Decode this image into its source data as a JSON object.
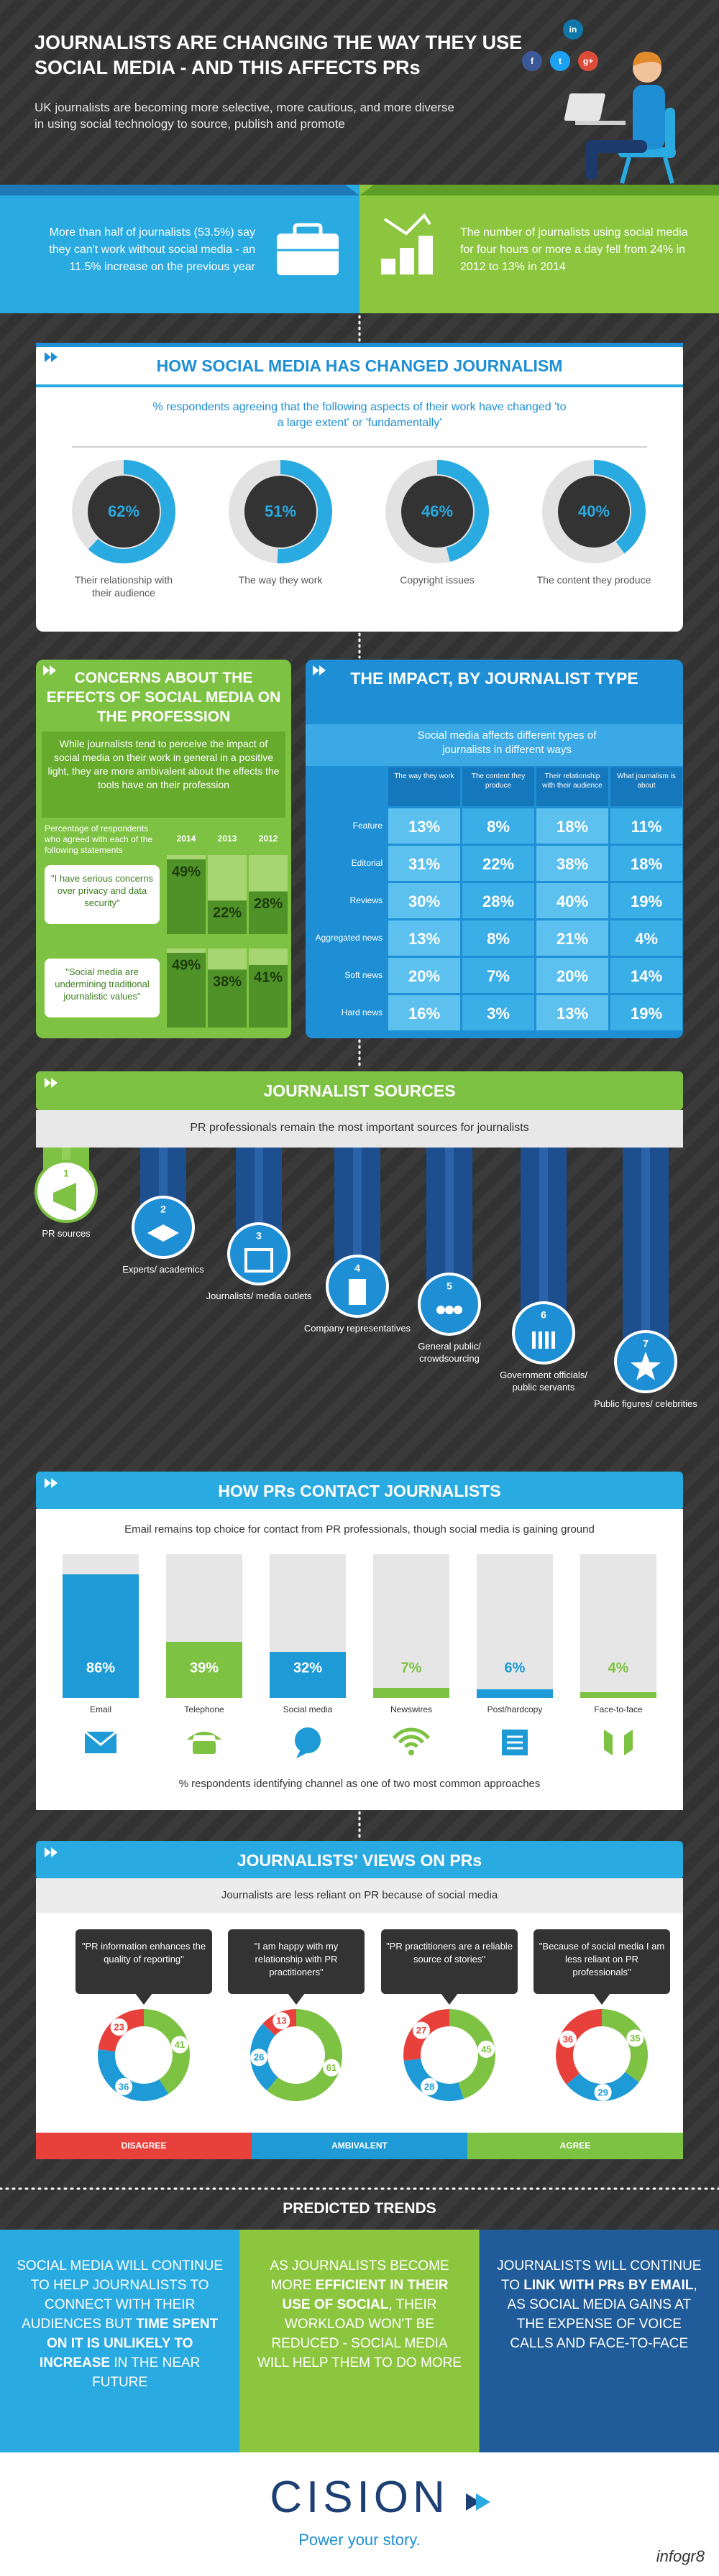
{
  "header": {
    "title": "JOURNALISTS ARE CHANGING THE WAY THEY USE SOCIAL MEDIA - AND THIS AFFECTS PRs",
    "subtitle": "UK journalists are becoming more selective, more cautious, and more diverse in using social technology to source, publish and promote",
    "social_icons": [
      "in",
      "f",
      "t",
      "g+"
    ]
  },
  "stats": [
    "More than half of journalists (53.5%) say they can't work without social media - an 11.5% increase on the previous year",
    "The number of journalists using social media for four hours or more a day fell from 24% in 2012 to 13% in 2014"
  ],
  "social_media_change": {
    "title": "HOW SOCIAL MEDIA HAS CHANGED JOURNALISM",
    "subtitle": "% respondents agreeing that the following aspects of their work have changed 'to a large extent' or 'fundamentally'",
    "values": [
      62,
      51,
      46,
      40
    ],
    "value_labels": [
      "62%",
      "51%",
      "46%",
      "40%"
    ],
    "captions": [
      "Their relationship with their audience",
      "The way they work",
      "Copyright issues",
      "The content they produce"
    ]
  },
  "concerns": {
    "title": "CONCERNS ABOUT THE EFFECTS OF SOCIAL MEDIA ON THE PROFESSION",
    "intro": "While journalists tend to perceive the impact of social media on their work in general in a positive light, they are more ambivalent about the effects the tools have on their profession",
    "caption": "Percentage of respondents who agreed with each of the following statements",
    "years": [
      "2014",
      "2013",
      "2012"
    ],
    "rows": [
      {
        "statement": "\"I have serious concerns over privacy and data security\"",
        "values": [
          49,
          22,
          28
        ],
        "value_labels": [
          "49%",
          "22%",
          "28%"
        ]
      },
      {
        "statement": "\"Social media are undermining traditional journalistic values\"",
        "values": [
          49,
          38,
          41
        ],
        "value_labels": [
          "49%",
          "38%",
          "41%"
        ]
      }
    ]
  },
  "impact": {
    "title": "THE IMPACT, BY JOURNALIST TYPE",
    "subtitle": "Social media affects different types of journalists in different ways",
    "columns": [
      "The way they work",
      "The content they produce",
      "Their relationship with their audience",
      "What journalism is about"
    ],
    "rows": [
      {
        "label": "Feature",
        "cells": [
          "13%",
          "8%",
          "18%",
          "11%"
        ]
      },
      {
        "label": "Editorial",
        "cells": [
          "31%",
          "22%",
          "38%",
          "18%"
        ]
      },
      {
        "label": "Reviews",
        "cells": [
          "30%",
          "28%",
          "40%",
          "19%"
        ]
      },
      {
        "label": "Aggregated news",
        "cells": [
          "13%",
          "8%",
          "21%",
          "4%"
        ]
      },
      {
        "label": "Soft news",
        "cells": [
          "20%",
          "7%",
          "20%",
          "14%"
        ]
      },
      {
        "label": "Hard news",
        "cells": [
          "16%",
          "3%",
          "13%",
          "19%"
        ]
      }
    ]
  },
  "sources": {
    "title": "JOURNALIST SOURCES",
    "subtitle": "PR professionals remain the most important sources for journalists",
    "items": [
      {
        "rank": 1,
        "label": "PR sources"
      },
      {
        "rank": 2,
        "label": "Experts/ academics"
      },
      {
        "rank": 3,
        "label": "Journalists/ media outlets"
      },
      {
        "rank": 4,
        "label": "Company representatives"
      },
      {
        "rank": 5,
        "label": "General public/ crowdsourcing"
      },
      {
        "rank": 6,
        "label": "Government officials/ public servants"
      },
      {
        "rank": 7,
        "label": "Public figures/ celebrities"
      }
    ]
  },
  "contact": {
    "title": "HOW PRs CONTACT JOURNALISTS",
    "subtitle": "Email remains top choice for contact from PR professionals, though social media is gaining ground",
    "note": "% respondents identifying channel as one of two most common approaches",
    "ylim": [
      0,
      100
    ],
    "categories": [
      "Email",
      "Telephone",
      "Social media",
      "Newswires",
      "Post/hardcopy",
      "Face-to-face"
    ],
    "values": [
      86,
      39,
      32,
      7,
      6,
      4
    ],
    "value_labels": [
      "86%",
      "39%",
      "32%",
      "7%",
      "6%",
      "4%"
    ],
    "colors": [
      "#1e9ad6",
      "#7dc242",
      "#1e9ad6",
      "#7dc242",
      "#1e9ad6",
      "#7dc242"
    ]
  },
  "views": {
    "title": "JOURNALISTS' VIEWS ON PRs",
    "subtitle": "Journalists are less reliant on PR because of social media",
    "legend": [
      "DISAGREE",
      "AMBIVALENT",
      "AGREE"
    ],
    "colors": [
      "#e8413c",
      "#1e9ad6",
      "#7dc242"
    ],
    "items": [
      {
        "quote": "\"PR information enhances the quality of reporting\"",
        "values": [
          23,
          36,
          41
        ]
      },
      {
        "quote": "\"I am happy with my relationship with PR practitioners\"",
        "values": [
          13,
          26,
          61
        ]
      },
      {
        "quote": "\"PR practitioners are a reliable source of stories\"",
        "values": [
          27,
          28,
          45
        ]
      },
      {
        "quote": "\"Because of social media I am less reliant on PR professionals\"",
        "values": [
          36,
          29,
          35
        ]
      }
    ]
  },
  "trends": {
    "title": "PREDICTED TRENDS",
    "items": [
      {
        "parts": [
          {
            "text": "SOCIAL MEDIA WILL CONTINUE TO HELP JOURNALISTS TO CONNECT WITH THEIR AUDIENCES BUT "
          },
          {
            "text": "TIME SPENT ON IT IS UNLIKELY TO INCREASE",
            "bold": true
          },
          {
            "text": " IN THE NEAR FUTURE"
          }
        ]
      },
      {
        "parts": [
          {
            "text": "AS JOURNALISTS BECOME MORE "
          },
          {
            "text": "EFFICIENT IN THEIR USE OF SOCIAL",
            "bold": true
          },
          {
            "text": ", THEIR WORKLOAD WON'T BE REDUCED - SOCIAL MEDIA WILL HELP THEM TO DO MORE"
          }
        ]
      },
      {
        "parts": [
          {
            "text": "JOURNALISTS WILL CONTINUE TO "
          },
          {
            "text": "LINK WITH PRs BY EMAIL",
            "bold": true
          },
          {
            "text": ", AS SOCIAL MEDIA GAINS AT THE EXPENSE OF VOICE CALLS AND FACE-TO-FACE"
          }
        ]
      }
    ]
  },
  "footer": {
    "logo": "CISION",
    "tagline": "Power your story.",
    "credit": "infogr8"
  }
}
